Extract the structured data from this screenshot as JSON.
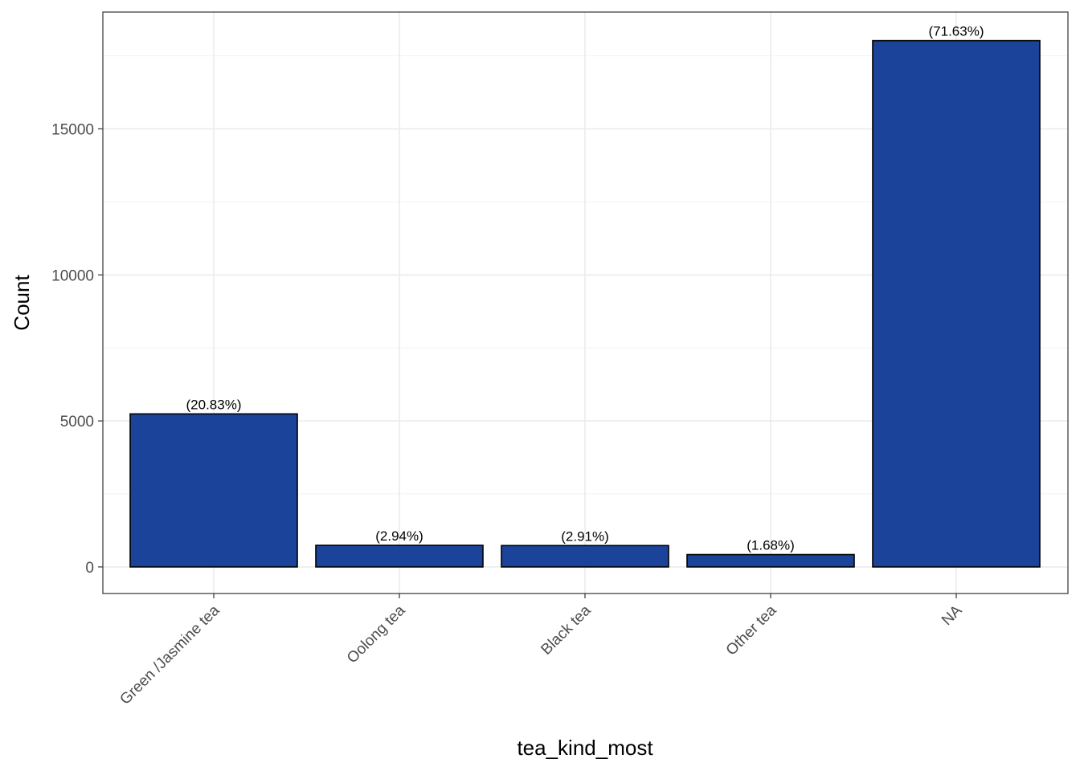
{
  "chart_data": {
    "type": "bar",
    "categories": [
      "Green /Jasmine tea",
      "Oolong tea",
      "Black tea",
      "Other tea",
      "NA"
    ],
    "values": [
      5240,
      740,
      732,
      423,
      18020
    ],
    "labels": [
      "(20.83%)",
      "(2.94%)",
      "(2.91%)",
      "(1.68%)",
      "(71.63%)"
    ],
    "xlabel": "tea_kind_most",
    "ylabel": "Count",
    "yticks": [
      0,
      5000,
      10000,
      15000
    ],
    "ylim": [
      -910,
      19000
    ],
    "grid": true,
    "legend": "none",
    "bar_color": "#1a4399",
    "bar_border": "#000000"
  }
}
